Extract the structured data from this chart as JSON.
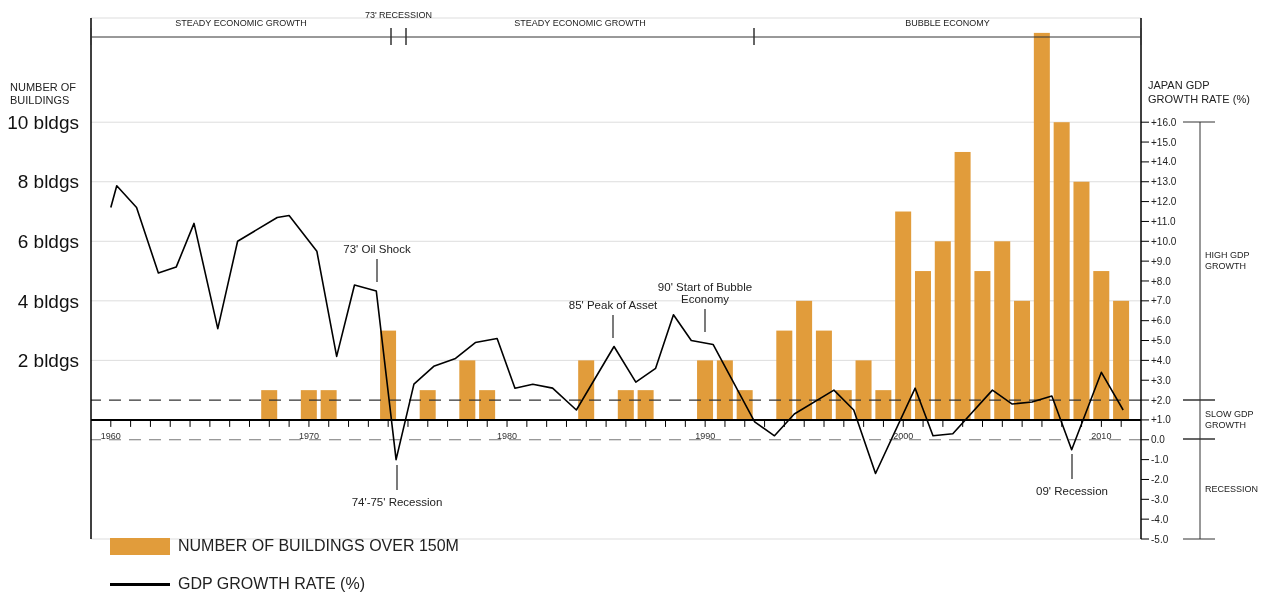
{
  "chart_data": {
    "type": "bar",
    "ylabel": "NUMBER OF BUILDINGS",
    "y2label": "JAPAN GDP GROWTH RATE (%)",
    "x": [
      1960,
      1961,
      1962,
      1963,
      1964,
      1965,
      1966,
      1967,
      1968,
      1969,
      1970,
      1971,
      1972,
      1973,
      1974,
      1975,
      1976,
      1977,
      1978,
      1979,
      1980,
      1981,
      1982,
      1983,
      1984,
      1985,
      1986,
      1987,
      1988,
      1989,
      1990,
      1991,
      1992,
      1993,
      1994,
      1995,
      1996,
      1997,
      1998,
      1999,
      2000,
      2001,
      2002,
      2003,
      2004,
      2005,
      2006,
      2007,
      2008,
      2009,
      2010,
      2011
    ],
    "series": [
      {
        "name": "NUMBER OF BUILDINGS OVER 150M",
        "color": "#e19c3b",
        "values": [
          0,
          0,
          0,
          0,
          0,
          0,
          0,
          0,
          1,
          0,
          1,
          1,
          0,
          0,
          3,
          0,
          1,
          0,
          2,
          1,
          0,
          0,
          0,
          0,
          2,
          0,
          1,
          1,
          0,
          0,
          2,
          2,
          1,
          0,
          3,
          4,
          3,
          1,
          2,
          1,
          7,
          5,
          6,
          9,
          5,
          6,
          4,
          13,
          10,
          8,
          5,
          4
        ]
      },
      {
        "type": "line",
        "name": "GDP GROWTH RATE (%)",
        "color": "#000000",
        "axis": "y2",
        "marker": "none",
        "line_style": "solid",
        "x": [
          1960,
          1960.3,
          1961.3,
          1962.4,
          1963.3,
          1964.2,
          1965.4,
          1966.4,
          1968.4,
          1969,
          1970.4,
          1971.4,
          1972.3,
          1973.4,
          1974.4,
          1975.3,
          1976.3,
          1977.4,
          1978.4,
          1979.5,
          1980.4,
          1981.3,
          1982.3,
          1983.5,
          1985.4,
          1986.5,
          1987.5,
          1988.4,
          1989.3,
          1990.4,
          1992.5,
          1993.5,
          1994.5,
          1996.5,
          1997.5,
          1998.6,
          2000.6,
          2001.5,
          2002.5,
          2004.5,
          2005.5,
          2006.5,
          2007.5,
          2008.5,
          2010,
          2011.1
        ],
        "values": [
          11.7,
          12.8,
          11.7,
          8.4,
          8.7,
          10.9,
          5.6,
          10.0,
          11.2,
          11.3,
          9.5,
          4.2,
          7.8,
          7.5,
          -1.0,
          2.8,
          3.7,
          4.1,
          4.9,
          5.1,
          2.6,
          2.8,
          2.6,
          1.5,
          4.7,
          2.9,
          3.6,
          6.3,
          5.0,
          4.8,
          0.9,
          0.2,
          1.3,
          2.5,
          1.5,
          -1.7,
          2.6,
          0.2,
          0.3,
          2.5,
          1.8,
          1.9,
          2.2,
          -0.5,
          3.4,
          1.5
        ]
      }
    ],
    "xlim": [
      1959,
      2012
    ],
    "xticks": [
      1960,
      {
        "value": 1961,
        "label": null
      },
      {
        "value": 1962,
        "label": null
      },
      {
        "value": 1963,
        "label": null
      },
      {
        "value": 1964,
        "label": null
      },
      {
        "value": 1965,
        "label": null
      },
      {
        "value": 1966,
        "label": null
      },
      {
        "value": 1967,
        "label": null
      },
      {
        "value": 1968,
        "label": null
      },
      {
        "value": 1969,
        "label": null
      },
      1970,
      {
        "value": 1971,
        "label": null
      },
      {
        "value": 1972,
        "label": null
      },
      {
        "value": 1973,
        "label": null
      },
      {
        "value": 1974,
        "label": null
      },
      {
        "value": 1975,
        "label": null
      },
      {
        "value": 1976,
        "label": null
      },
      {
        "value": 1977,
        "label": null
      },
      {
        "value": 1978,
        "label": null
      },
      {
        "value": 1979,
        "label": null
      },
      1980,
      {
        "value": 1981,
        "label": null
      },
      {
        "value": 1982,
        "label": null
      },
      {
        "value": 1983,
        "label": null
      },
      {
        "value": 1984,
        "label": null
      },
      {
        "value": 1985,
        "label": null
      },
      {
        "value": 1986,
        "label": null
      },
      {
        "value": 1987,
        "label": null
      },
      {
        "value": 1988,
        "label": null
      },
      {
        "value": 1989,
        "label": null
      },
      1990,
      {
        "value": 1991,
        "label": null
      },
      {
        "value": 1992,
        "label": null
      },
      {
        "value": 1993,
        "label": null
      },
      {
        "value": 1994,
        "label": null
      },
      {
        "value": 1995,
        "label": null
      },
      {
        "value": 1996,
        "label": null
      },
      {
        "value": 1997,
        "label": null
      },
      {
        "value": 1998,
        "label": null
      },
      {
        "value": 1999,
        "label": null
      },
      2000,
      {
        "value": 2001,
        "label": null
      },
      {
        "value": 2002,
        "label": null
      },
      {
        "value": 2003,
        "label": null
      },
      {
        "value": 2004,
        "label": null
      },
      {
        "value": 2005,
        "label": null
      },
      {
        "value": 2006,
        "label": null
      },
      {
        "value": 2007,
        "label": null
      },
      {
        "value": 2008,
        "label": null
      },
      {
        "value": 2009,
        "label": null
      },
      2010,
      {
        "value": 2011,
        "label": null
      }
    ],
    "ylim": [
      -4,
      13.5
    ],
    "yticks": [
      {
        "value": 2,
        "label": "2 bldgs"
      },
      {
        "value": 4,
        "label": "4 bldgs"
      },
      {
        "value": 6,
        "label": "6 bldgs"
      },
      {
        "value": 8,
        "label": "8 bldgs"
      },
      {
        "value": 10,
        "label": "10 bldgs"
      }
    ],
    "y2lim": [
      -5,
      21.25
    ],
    "y2ticks": [
      {
        "value": -5,
        "label": "-5.0"
      },
      {
        "value": -4,
        "label": "-4.0"
      },
      {
        "value": -3,
        "label": "-3.0"
      },
      {
        "value": -2,
        "label": "-2.0"
      },
      {
        "value": -1,
        "label": "-1.0"
      },
      {
        "value": 0,
        "label": "0.0"
      },
      {
        "value": 1,
        "label": "+1.0"
      },
      {
        "value": 2,
        "label": "+2.0"
      },
      {
        "value": 3,
        "label": "+3.0"
      },
      {
        "value": 4,
        "label": "+4.0"
      },
      {
        "value": 5,
        "label": "+5.0"
      },
      {
        "value": 6,
        "label": "+6.0"
      },
      {
        "value": 7,
        "label": "+7.0"
      },
      {
        "value": 8,
        "label": "+8.0"
      },
      {
        "value": 9,
        "label": "+9.0"
      },
      {
        "value": 10,
        "label": "+10.0"
      },
      {
        "value": 11,
        "label": "+11.0"
      },
      {
        "value": 12,
        "label": "+12.0"
      },
      {
        "value": 13,
        "label": "+13.0"
      },
      {
        "value": 14,
        "label": "+14.0"
      },
      {
        "value": 15,
        "label": "+15.0"
      },
      {
        "value": 16,
        "label": "+16.0"
      }
    ],
    "grid": "y",
    "legend": "bottom left",
    "ref_lines": [
      {
        "axis": "y2",
        "value": 2,
        "color": "#333333",
        "line_style": "dashed"
      },
      {
        "axis": "y2",
        "value": 0,
        "color": "#777777",
        "line_style": "dashed"
      }
    ],
    "annotations": [
      "STEADY ECONOMIC GROWTH",
      "73' RECESSION",
      "STEADY ECONOMIC GROWTH",
      "BUBBLE ECONOMY",
      "HIGH GDP GROWTH",
      "SLOW GDP GROWTH",
      "RECESSION",
      "73' Oil Shock",
      "74'-75' Recession",
      "85' Peak of Asset",
      "90' Start of Bubble Economy",
      "09' Recession"
    ]
  }
}
